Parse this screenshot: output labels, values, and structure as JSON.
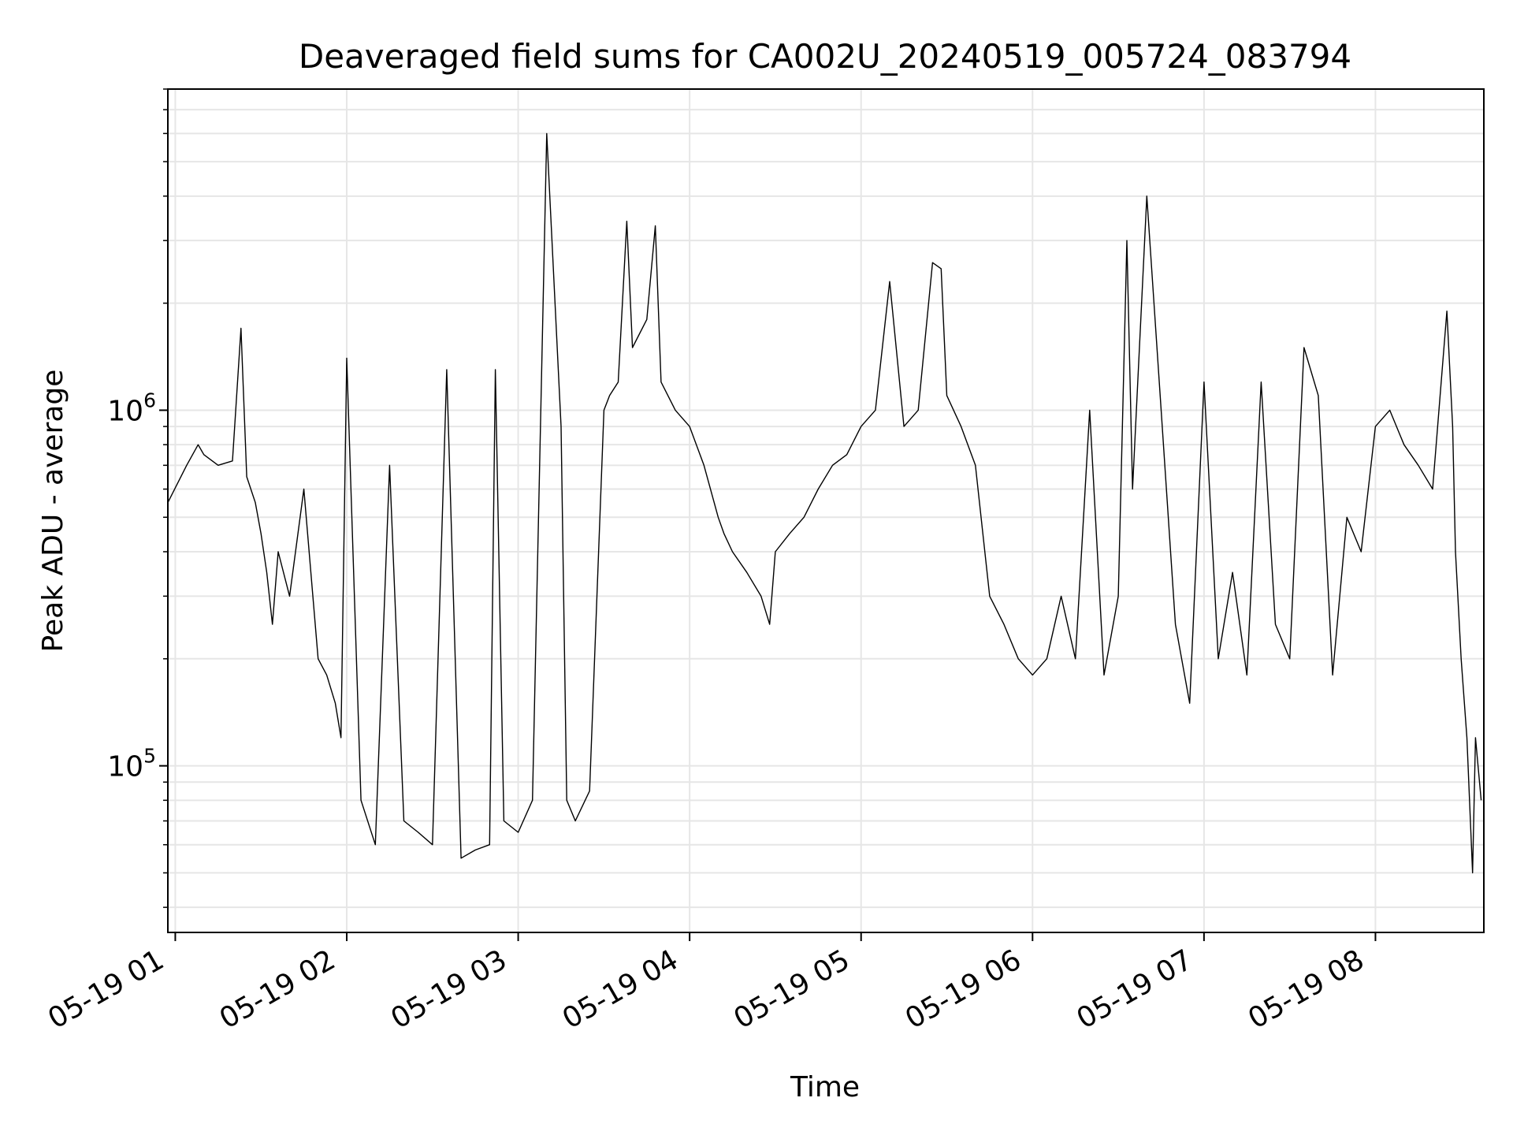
{
  "chart_data": {
    "type": "line",
    "title": "Deaveraged field sums for CA002U_20240519_005724_083794",
    "xlabel": "Time",
    "ylabel": "Peak ADU - average",
    "xlim": [
      "2024-05-19T00:57:24",
      "2024-05-19T08:37:56"
    ],
    "ylim": [
      34000,
      8000000
    ],
    "yscale": "log",
    "x_ticks": [
      {
        "value": "2024-05-19T01:00:00",
        "label": "05-19 01"
      },
      {
        "value": "2024-05-19T02:00:00",
        "label": "05-19 02"
      },
      {
        "value": "2024-05-19T03:00:00",
        "label": "05-19 03"
      },
      {
        "value": "2024-05-19T04:00:00",
        "label": "05-19 04"
      },
      {
        "value": "2024-05-19T05:00:00",
        "label": "05-19 05"
      },
      {
        "value": "2024-05-19T06:00:00",
        "label": "05-19 06"
      },
      {
        "value": "2024-05-19T07:00:00",
        "label": "05-19 07"
      },
      {
        "value": "2024-05-19T08:00:00",
        "label": "05-19 08"
      }
    ],
    "y_ticks": [
      {
        "value": 100000,
        "base": "10",
        "exp": "5"
      },
      {
        "value": 1000000,
        "base": "10",
        "exp": "6"
      }
    ],
    "grid": true,
    "line_color": "#000000",
    "series": [
      {
        "x": [
          "00:57:24",
          "01:04:00",
          "01:08:00",
          "01:10:00",
          "01:15:00",
          "01:20:00",
          "01:23:00",
          "01:25:00",
          "01:28:00",
          "01:30:00",
          "01:32:00",
          "01:34:00",
          "01:36:00",
          "01:40:00",
          "01:45:00",
          "01:50:00",
          "01:53:00",
          "01:56:00",
          "01:58:00",
          "02:00:00",
          "02:05:00",
          "02:10:00",
          "02:15:00",
          "02:20:00",
          "02:25:00",
          "02:30:00",
          "02:35:00",
          "02:40:00",
          "02:45:00",
          "02:50:00",
          "02:52:00",
          "02:55:00",
          "03:00:00",
          "03:05:00",
          "03:10:00",
          "03:15:00",
          "03:17:00",
          "03:20:00",
          "03:25:00",
          "03:30:00",
          "03:32:00",
          "03:35:00",
          "03:38:00",
          "03:40:00",
          "03:45:00",
          "03:48:00",
          "03:50:00",
          "03:55:00",
          "04:00:00",
          "04:05:00",
          "04:10:00",
          "04:12:00",
          "04:15:00",
          "04:20:00",
          "04:25:00",
          "04:28:00",
          "04:30:00",
          "04:35:00",
          "04:40:00",
          "04:45:00",
          "04:50:00",
          "04:55:00",
          "05:00:00",
          "05:05:00",
          "05:10:00",
          "05:15:00",
          "05:20:00",
          "05:25:00",
          "05:28:00",
          "05:30:00",
          "05:35:00",
          "05:40:00",
          "05:45:00",
          "05:50:00",
          "05:55:00",
          "06:00:00",
          "06:05:00",
          "06:10:00",
          "06:15:00",
          "06:20:00",
          "06:25:00",
          "06:30:00",
          "06:33:00",
          "06:35:00",
          "06:40:00",
          "06:45:00",
          "06:50:00",
          "06:55:00",
          "07:00:00",
          "07:05:00",
          "07:10:00",
          "07:15:00",
          "07:20:00",
          "07:25:00",
          "07:30:00",
          "07:35:00",
          "07:40:00",
          "07:45:00",
          "07:50:00",
          "07:55:00",
          "08:00:00",
          "08:05:00",
          "08:10:00",
          "08:15:00",
          "08:20:00",
          "08:25:00",
          "08:27:00",
          "08:28:00",
          "08:30:00",
          "08:32:00",
          "08:34:00",
          "08:35:00",
          "08:37:00"
        ],
        "values": [
          550000,
          700000,
          800000,
          750000,
          700000,
          720000,
          1700000,
          650000,
          550000,
          450000,
          350000,
          250000,
          400000,
          300000,
          600000,
          200000,
          180000,
          150000,
          120000,
          1400000,
          80000,
          60000,
          700000,
          70000,
          65000,
          60000,
          1300000,
          55000,
          58000,
          60000,
          1300000,
          70000,
          65000,
          80000,
          6000000,
          900000,
          80000,
          70000,
          85000,
          1000000,
          1100000,
          1200000,
          3400000,
          1500000,
          1800000,
          3300000,
          1200000,
          1000000,
          900000,
          700000,
          500000,
          450000,
          400000,
          350000,
          300000,
          250000,
          400000,
          450000,
          500000,
          600000,
          700000,
          750000,
          900000,
          1000000,
          2300000,
          900000,
          1000000,
          2600000,
          2500000,
          1100000,
          900000,
          700000,
          300000,
          250000,
          200000,
          180000,
          200000,
          300000,
          200000,
          1000000,
          180000,
          300000,
          3000000,
          600000,
          4000000,
          1000000,
          250000,
          150000,
          1200000,
          200000,
          350000,
          180000,
          1200000,
          250000,
          200000,
          1500000,
          1100000,
          180000,
          500000,
          400000,
          900000,
          1000000,
          800000,
          700000,
          600000,
          1900000,
          900000,
          400000,
          200000,
          120000,
          50000,
          120000,
          80000
        ]
      }
    ]
  }
}
